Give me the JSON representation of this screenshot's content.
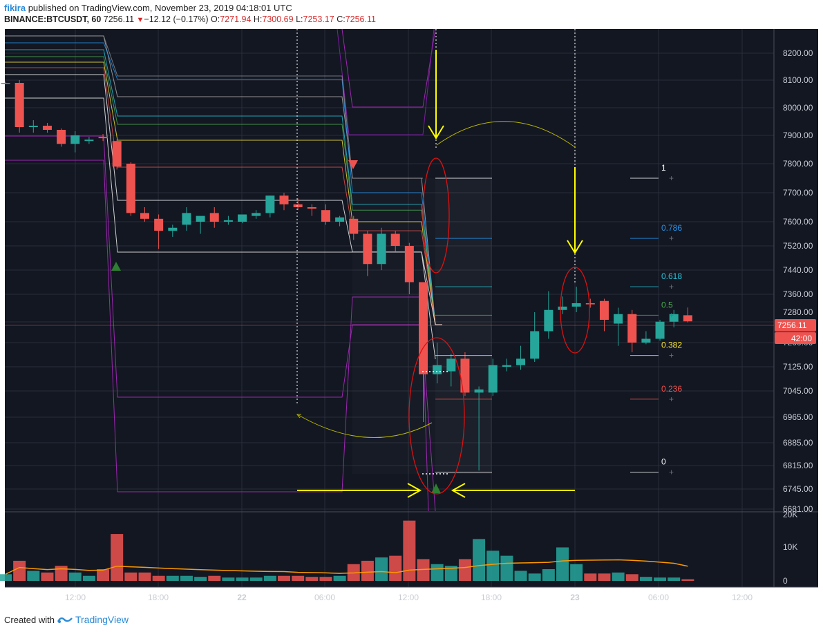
{
  "header": {
    "user": "fikira",
    "published_text": " published on TradingView.com, November 23, 2019 04:18:01 UTC",
    "symbol": "BINANCE:BTCUSDT, 60",
    "last": "7256.11",
    "change_arrow": "▼",
    "change": "−12.12 (−0.17%)",
    "o_label": "O:",
    "o_value": "7271.94",
    "h_label": "H:",
    "h_value": "7300.69",
    "l_label": "L:",
    "l_value": "7253.17",
    "c_label": "C:",
    "c_value": "7256.11"
  },
  "footer": {
    "created_with": "Created with",
    "brand": "TradingView"
  },
  "price_axis": {
    "ticks": [
      "8200.00",
      "8100.00",
      "8000.00",
      "7900.00",
      "7800.00",
      "7700.00",
      "7600.00",
      "7520.00",
      "7440.00",
      "7360.00",
      "7280.00",
      "7200.00",
      "7125.00",
      "7045.00",
      "6965.00",
      "6885.00",
      "6815.00",
      "6745.00",
      "6681.00"
    ],
    "last_price_label": "7256.11",
    "countdown_label": "42:00"
  },
  "volume_axis": {
    "ticks": [
      "20K",
      "10K",
      "0"
    ]
  },
  "time_axis": {
    "ticks": [
      "12:00",
      "18:00",
      "22",
      "06:00",
      "12:00",
      "18:00",
      "23",
      "06:00",
      "12:00"
    ]
  },
  "fib_levels": [
    {
      "label": "1",
      "color": "#ffffff"
    },
    {
      "label": "0.786",
      "color": "#2196f3"
    },
    {
      "label": "0.618",
      "color": "#26c6da"
    },
    {
      "label": "0.5",
      "color": "#4caf50"
    },
    {
      "label": "0.382",
      "color": "#ffeb3b"
    },
    {
      "label": "0.236",
      "color": "#ef5350"
    },
    {
      "label": "0",
      "color": "#ffffff"
    }
  ],
  "colors": {
    "background": "#131722",
    "up": "#26a69a",
    "down": "#ef5350",
    "annotation": "#ffff00",
    "ellipse": "#e01010",
    "grid": "#2a2e39",
    "volume_ma": "#ff9800"
  },
  "chart_data": {
    "type": "candlestick",
    "symbol": "BINANCE:BTCUSDT",
    "interval": "60",
    "ylim": [
      6681,
      8250
    ],
    "candles": [
      {
        "o": 8090,
        "h": 8095,
        "l": 8085,
        "c": 8090
      },
      {
        "o": 8090,
        "h": 8100,
        "l": 7910,
        "c": 7930
      },
      {
        "o": 7930,
        "h": 7955,
        "l": 7910,
        "c": 7935
      },
      {
        "o": 7935,
        "h": 7945,
        "l": 7910,
        "c": 7920
      },
      {
        "o": 7920,
        "h": 7925,
        "l": 7860,
        "c": 7870
      },
      {
        "o": 7870,
        "h": 7915,
        "l": 7840,
        "c": 7900
      },
      {
        "o": 7880,
        "h": 7895,
        "l": 7870,
        "c": 7885
      },
      {
        "o": 7895,
        "h": 7905,
        "l": 7880,
        "c": 7890
      },
      {
        "o": 7880,
        "h": 7885,
        "l": 7780,
        "c": 7790
      },
      {
        "o": 7800,
        "h": 7805,
        "l": 7620,
        "c": 7630
      },
      {
        "o": 7630,
        "h": 7650,
        "l": 7600,
        "c": 7610
      },
      {
        "o": 7610,
        "h": 7625,
        "l": 7510,
        "c": 7570
      },
      {
        "o": 7570,
        "h": 7590,
        "l": 7550,
        "c": 7580
      },
      {
        "o": 7590,
        "h": 7650,
        "l": 7570,
        "c": 7630
      },
      {
        "o": 7600,
        "h": 7610,
        "l": 7560,
        "c": 7620
      },
      {
        "o": 7630,
        "h": 7650,
        "l": 7580,
        "c": 7600
      },
      {
        "o": 7600,
        "h": 7620,
        "l": 7590,
        "c": 7605
      },
      {
        "o": 7600,
        "h": 7625,
        "l": 7595,
        "c": 7625
      },
      {
        "o": 7620,
        "h": 7640,
        "l": 7610,
        "c": 7630
      },
      {
        "o": 7630,
        "h": 7690,
        "l": 7615,
        "c": 7690
      },
      {
        "o": 7690,
        "h": 7700,
        "l": 7640,
        "c": 7660
      },
      {
        "o": 7660,
        "h": 7680,
        "l": 7640,
        "c": 7650
      },
      {
        "o": 7650,
        "h": 7660,
        "l": 7620,
        "c": 7645
      },
      {
        "o": 7640,
        "h": 7660,
        "l": 7590,
        "c": 7600
      },
      {
        "o": 7600,
        "h": 7620,
        "l": 7585,
        "c": 7615
      },
      {
        "o": 7610,
        "h": 7620,
        "l": 7540,
        "c": 7560
      },
      {
        "o": 7560,
        "h": 7570,
        "l": 7420,
        "c": 7460
      },
      {
        "o": 7460,
        "h": 7580,
        "l": 7440,
        "c": 7560
      },
      {
        "o": 7560,
        "h": 7570,
        "l": 7500,
        "c": 7520
      },
      {
        "o": 7520,
        "h": 7530,
        "l": 7360,
        "c": 7400
      },
      {
        "o": 7400,
        "h": 7400,
        "l": 6950,
        "c": 7100
      },
      {
        "o": 7100,
        "h": 7200,
        "l": 7070,
        "c": 7130
      },
      {
        "o": 7110,
        "h": 7165,
        "l": 7060,
        "c": 7150
      },
      {
        "o": 7150,
        "h": 7170,
        "l": 7030,
        "c": 7040
      },
      {
        "o": 7040,
        "h": 7060,
        "l": 6800,
        "c": 7050
      },
      {
        "o": 7040,
        "h": 7150,
        "l": 7030,
        "c": 7130
      },
      {
        "o": 7125,
        "h": 7150,
        "l": 7110,
        "c": 7130
      },
      {
        "o": 7130,
        "h": 7190,
        "l": 7115,
        "c": 7150
      },
      {
        "o": 7150,
        "h": 7280,
        "l": 7140,
        "c": 7230
      },
      {
        "o": 7230,
        "h": 7370,
        "l": 7210,
        "c": 7290
      },
      {
        "o": 7290,
        "h": 7350,
        "l": 7275,
        "c": 7305
      },
      {
        "o": 7305,
        "h": 7385,
        "l": 7280,
        "c": 7320
      },
      {
        "o": 7320,
        "h": 7340,
        "l": 7300,
        "c": 7315
      },
      {
        "o": 7330,
        "h": 7340,
        "l": 7230,
        "c": 7260
      },
      {
        "o": 7250,
        "h": 7300,
        "l": 7190,
        "c": 7275
      },
      {
        "o": 7275,
        "h": 7290,
        "l": 7170,
        "c": 7200
      },
      {
        "o": 7200,
        "h": 7230,
        "l": 7195,
        "c": 7210
      },
      {
        "o": 7210,
        "h": 7260,
        "l": 7205,
        "c": 7255
      },
      {
        "o": 7255,
        "h": 7290,
        "l": 7240,
        "c": 7275
      },
      {
        "o": 7272,
        "h": 7301,
        "l": 7253,
        "c": 7256
      }
    ],
    "volume": [
      2,
      6,
      3,
      2.5,
      4.5,
      2.5,
      1.5,
      3.5,
      14,
      2.5,
      2.5,
      1.5,
      1.5,
      1.5,
      1.2,
      1.5,
      1,
      1,
      1,
      1.5,
      1.5,
      1.5,
      1.2,
      1.2,
      1.5,
      5,
      6,
      7,
      7.5,
      18,
      6.5,
      5,
      4.5,
      6.5,
      12.5,
      9,
      7.5,
      3,
      2.2,
      3.5,
      10,
      5,
      2.2,
      2.2,
      2.5,
      2,
      1.2,
      1,
      1,
      0.5
    ],
    "fib_retracement": [
      {
        "ratio": "1",
        "price": 7750
      },
      {
        "ratio": "0.786",
        "price": 7545
      },
      {
        "ratio": "0.618",
        "price": 7385
      },
      {
        "ratio": "0.5",
        "price": 7272
      },
      {
        "ratio": "0.382",
        "price": 7160
      },
      {
        "ratio": "0.236",
        "price": 7020
      },
      {
        "ratio": "0",
        "price": 6795
      }
    ]
  }
}
